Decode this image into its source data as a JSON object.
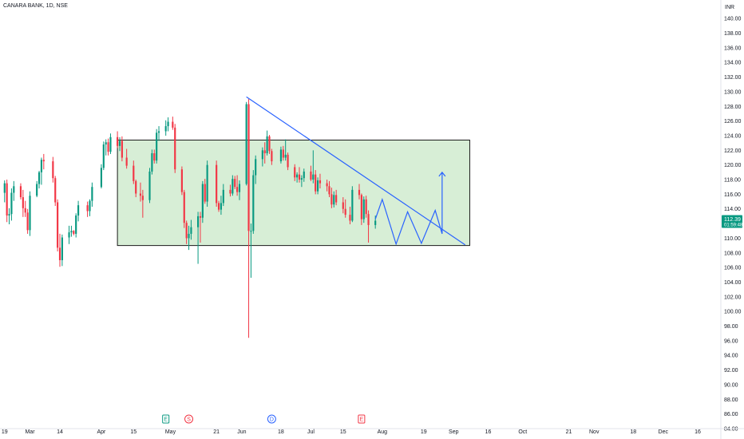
{
  "header": {
    "title": "CANARA BANK, 1D, NSE",
    "currency": "INR"
  },
  "price_tag": {
    "price": "112.39",
    "countdown": "01:59:48",
    "color": "#089981"
  },
  "colors": {
    "up": "#089981",
    "down": "#f23645",
    "box_fill": "#d7eed6",
    "box_stroke": "#1b1b1b",
    "trendline": "#2962ff",
    "projection": "#2962ff",
    "axis_border": "#e0e3eb"
  },
  "event_markers": [
    {
      "label": "E",
      "x": "Apr 29",
      "color": "#089981"
    },
    {
      "label": "S",
      "x": "May 9",
      "color": "#f23645"
    },
    {
      "label": "D",
      "x": "Jun 14",
      "color": "#2962ff"
    },
    {
      "label": "E",
      "x": "Jul 23",
      "color": "#f23645"
    }
  ],
  "chart_data": {
    "type": "candlestick",
    "title": "CANARA BANK, 1D, NSE",
    "y_unit": "INR",
    "ylim": [
      84,
      141
    ],
    "x_range": [
      "2024-02-17",
      "2024-12-25"
    ],
    "x_tick_labels": [
      "19",
      "Mar",
      "14",
      "Apr",
      "15",
      "May",
      "21",
      "Jun",
      "18",
      "Jul",
      "15",
      "Aug",
      "19",
      "Sep",
      "16",
      "Oct",
      "21",
      "Nov",
      "18",
      "Dec",
      "16"
    ],
    "y_tick_labels": [
      "84.00",
      "86.00",
      "88.00",
      "90.00",
      "92.00",
      "94.00",
      "96.00",
      "98.00",
      "100.00",
      "102.00",
      "104.00",
      "106.00",
      "108.00",
      "110.00",
      "112.00",
      "114.00",
      "116.00",
      "118.00",
      "120.00",
      "122.00",
      "124.00",
      "126.00",
      "128.00",
      "130.00",
      "132.00",
      "134.00",
      "136.00",
      "138.00",
      "140.00"
    ],
    "grid": false,
    "candles": [
      {
        "d": "2024-02-15",
        "o": 113.2,
        "h": 119.0,
        "l": 112.0,
        "c": 118.5
      },
      {
        "d": "2024-02-16",
        "o": 118.5,
        "h": 119.6,
        "l": 115.4,
        "c": 116.2
      },
      {
        "d": "2024-02-19",
        "o": 116.2,
        "h": 117.9,
        "l": 114.9,
        "c": 117.5
      },
      {
        "d": "2024-02-20",
        "o": 117.5,
        "h": 118.0,
        "l": 112.2,
        "c": 113.1
      },
      {
        "d": "2024-02-21",
        "o": 113.1,
        "h": 114.1,
        "l": 111.9,
        "c": 113.3
      },
      {
        "d": "2024-02-22",
        "o": 113.3,
        "h": 116.8,
        "l": 112.4,
        "c": 116.2
      },
      {
        "d": "2024-02-23",
        "o": 116.2,
        "h": 117.8,
        "l": 115.1,
        "c": 117.1
      },
      {
        "d": "2024-02-26",
        "o": 117.1,
        "h": 117.5,
        "l": 115.3,
        "c": 115.6
      },
      {
        "d": "2024-02-27",
        "o": 115.6,
        "h": 116.6,
        "l": 112.9,
        "c": 114.1
      },
      {
        "d": "2024-02-28",
        "o": 114.1,
        "h": 115.1,
        "l": 112.9,
        "c": 113.5
      },
      {
        "d": "2024-02-29",
        "o": 113.5,
        "h": 114.0,
        "l": 110.6,
        "c": 111.1
      },
      {
        "d": "2024-03-01",
        "o": 111.1,
        "h": 116.4,
        "l": 110.3,
        "c": 115.8
      },
      {
        "d": "2024-03-04",
        "o": 115.8,
        "h": 117.8,
        "l": 115.6,
        "c": 117.4
      },
      {
        "d": "2024-03-05",
        "o": 117.4,
        "h": 119.2,
        "l": 116.8,
        "c": 119.0
      },
      {
        "d": "2024-03-06",
        "o": 119.0,
        "h": 121.0,
        "l": 117.3,
        "c": 120.7
      },
      {
        "d": "2024-03-07",
        "o": 120.7,
        "h": 121.5,
        "l": 119.4,
        "c": 120.5
      },
      {
        "d": "2024-03-11",
        "o": 120.5,
        "h": 121.1,
        "l": 117.6,
        "c": 118.2
      },
      {
        "d": "2024-03-12",
        "o": 118.2,
        "h": 118.5,
        "l": 114.4,
        "c": 114.9
      },
      {
        "d": "2024-03-13",
        "o": 114.9,
        "h": 115.3,
        "l": 108.2,
        "c": 108.7
      },
      {
        "d": "2024-03-14",
        "o": 108.7,
        "h": 110.6,
        "l": 106.1,
        "c": 107.0
      },
      {
        "d": "2024-03-15",
        "o": 107.0,
        "h": 110.5,
        "l": 106.2,
        "c": 110.1
      },
      {
        "d": "2024-03-18",
        "o": 110.1,
        "h": 111.7,
        "l": 109.2,
        "c": 110.8
      },
      {
        "d": "2024-03-19",
        "o": 110.8,
        "h": 111.7,
        "l": 110.2,
        "c": 111.0
      },
      {
        "d": "2024-03-20",
        "o": 111.0,
        "h": 111.1,
        "l": 110.4,
        "c": 110.6
      },
      {
        "d": "2024-03-21",
        "o": 110.6,
        "h": 113.4,
        "l": 110.1,
        "c": 113.1
      },
      {
        "d": "2024-03-22",
        "o": 113.1,
        "h": 115.1,
        "l": 112.3,
        "c": 114.5
      },
      {
        "d": "2024-03-26",
        "o": 114.5,
        "h": 115.0,
        "l": 112.9,
        "c": 113.7
      },
      {
        "d": "2024-03-27",
        "o": 113.7,
        "h": 115.3,
        "l": 113.0,
        "c": 115.1
      },
      {
        "d": "2024-03-28",
        "o": 115.1,
        "h": 117.6,
        "l": 114.3,
        "c": 117.0
      },
      {
        "d": "2024-04-01",
        "o": 117.0,
        "h": 120.1,
        "l": 116.8,
        "c": 119.6
      },
      {
        "d": "2024-04-02",
        "o": 119.6,
        "h": 123.2,
        "l": 119.3,
        "c": 122.8
      },
      {
        "d": "2024-04-03",
        "o": 122.8,
        "h": 123.5,
        "l": 121.3,
        "c": 123.1
      },
      {
        "d": "2024-04-04",
        "o": 123.1,
        "h": 123.6,
        "l": 121.3,
        "c": 121.8
      },
      {
        "d": "2024-04-05",
        "o": 121.8,
        "h": 124.3,
        "l": 121.5,
        "c": 123.8
      },
      {
        "d": "2024-04-08",
        "o": 123.8,
        "h": 124.6,
        "l": 122.3,
        "c": 122.6
      },
      {
        "d": "2024-04-09",
        "o": 122.6,
        "h": 123.8,
        "l": 121.9,
        "c": 123.3
      },
      {
        "d": "2024-04-10",
        "o": 123.3,
        "h": 123.9,
        "l": 120.5,
        "c": 121.0
      },
      {
        "d": "2024-04-12",
        "o": 121.0,
        "h": 122.2,
        "l": 119.5,
        "c": 119.9
      },
      {
        "d": "2024-04-15",
        "o": 119.9,
        "h": 120.6,
        "l": 117.4,
        "c": 117.8
      },
      {
        "d": "2024-04-16",
        "o": 117.8,
        "h": 118.0,
        "l": 115.6,
        "c": 116.1
      },
      {
        "d": "2024-04-18",
        "o": 116.1,
        "h": 117.6,
        "l": 115.0,
        "c": 115.8
      },
      {
        "d": "2024-04-19",
        "o": 115.8,
        "h": 116.6,
        "l": 112.8,
        "c": 115.2
      },
      {
        "d": "2024-04-22",
        "o": 115.2,
        "h": 119.6,
        "l": 114.8,
        "c": 119.1
      },
      {
        "d": "2024-04-23",
        "o": 119.1,
        "h": 122.1,
        "l": 118.7,
        "c": 121.6
      },
      {
        "d": "2024-04-24",
        "o": 121.6,
        "h": 122.1,
        "l": 120.2,
        "c": 120.6
      },
      {
        "d": "2024-04-25",
        "o": 120.6,
        "h": 124.9,
        "l": 120.2,
        "c": 124.4
      },
      {
        "d": "2024-04-26",
        "o": 124.4,
        "h": 125.3,
        "l": 123.3,
        "c": 124.6
      },
      {
        "d": "2024-04-29",
        "o": 124.6,
        "h": 126.1,
        "l": 124.0,
        "c": 125.3
      },
      {
        "d": "2024-04-30",
        "o": 125.3,
        "h": 126.5,
        "l": 124.6,
        "c": 125.9
      },
      {
        "d": "2024-05-02",
        "o": 125.9,
        "h": 126.6,
        "l": 124.8,
        "c": 125.1
      },
      {
        "d": "2024-05-03",
        "o": 125.1,
        "h": 125.6,
        "l": 118.9,
        "c": 119.4
      },
      {
        "d": "2024-05-06",
        "o": 119.4,
        "h": 119.8,
        "l": 115.9,
        "c": 116.3
      },
      {
        "d": "2024-05-07",
        "o": 116.3,
        "h": 116.6,
        "l": 111.4,
        "c": 112.1
      },
      {
        "d": "2024-05-08",
        "o": 112.1,
        "h": 112.4,
        "l": 109.2,
        "c": 110.0
      },
      {
        "d": "2024-05-09",
        "o": 110.0,
        "h": 111.7,
        "l": 108.4,
        "c": 110.6
      },
      {
        "d": "2024-05-10",
        "o": 110.6,
        "h": 112.5,
        "l": 109.8,
        "c": 111.5
      },
      {
        "d": "2024-05-13",
        "o": 111.5,
        "h": 113.6,
        "l": 106.5,
        "c": 113.0
      },
      {
        "d": "2024-05-14",
        "o": 113.0,
        "h": 113.6,
        "l": 109.4,
        "c": 112.8
      },
      {
        "d": "2024-05-15",
        "o": 112.8,
        "h": 117.8,
        "l": 112.1,
        "c": 117.4
      },
      {
        "d": "2024-05-16",
        "o": 117.4,
        "h": 118.1,
        "l": 114.7,
        "c": 115.0
      },
      {
        "d": "2024-05-17",
        "o": 115.0,
        "h": 120.6,
        "l": 114.3,
        "c": 120.0
      },
      {
        "d": "2024-05-21",
        "o": 120.0,
        "h": 120.6,
        "l": 114.3,
        "c": 114.8
      },
      {
        "d": "2024-05-22",
        "o": 114.8,
        "h": 115.1,
        "l": 113.6,
        "c": 113.9
      },
      {
        "d": "2024-05-23",
        "o": 113.9,
        "h": 115.8,
        "l": 113.2,
        "c": 114.8
      },
      {
        "d": "2024-05-24",
        "o": 114.8,
        "h": 117.4,
        "l": 114.4,
        "c": 116.6
      },
      {
        "d": "2024-05-27",
        "o": 116.6,
        "h": 117.3,
        "l": 115.7,
        "c": 116.1
      },
      {
        "d": "2024-05-28",
        "o": 116.1,
        "h": 118.6,
        "l": 115.8,
        "c": 118.1
      },
      {
        "d": "2024-05-29",
        "o": 118.1,
        "h": 118.5,
        "l": 116.7,
        "c": 117.0
      },
      {
        "d": "2024-05-30",
        "o": 117.0,
        "h": 118.6,
        "l": 115.8,
        "c": 116.3
      },
      {
        "d": "2024-05-31",
        "o": 116.3,
        "h": 117.9,
        "l": 115.2,
        "c": 117.4
      },
      {
        "d": "2024-06-03",
        "o": 117.4,
        "h": 128.6,
        "l": 117.2,
        "c": 128.3
      },
      {
        "d": "2024-06-04",
        "o": 128.3,
        "h": 129.0,
        "l": 96.4,
        "c": 111.0
      },
      {
        "d": "2024-06-05",
        "o": 111.0,
        "h": 112.0,
        "l": 104.6,
        "c": 111.0
      },
      {
        "d": "2024-06-06",
        "o": 111.0,
        "h": 119.3,
        "l": 110.6,
        "c": 118.6
      },
      {
        "d": "2024-06-07",
        "o": 118.6,
        "h": 121.3,
        "l": 117.4,
        "c": 120.8
      },
      {
        "d": "2024-06-10",
        "o": 120.8,
        "h": 122.4,
        "l": 119.8,
        "c": 122.0
      },
      {
        "d": "2024-06-11",
        "o": 122.0,
        "h": 123.1,
        "l": 120.2,
        "c": 121.6
      },
      {
        "d": "2024-06-12",
        "o": 121.6,
        "h": 124.7,
        "l": 121.3,
        "c": 123.9
      },
      {
        "d": "2024-06-13",
        "o": 123.9,
        "h": 124.1,
        "l": 121.5,
        "c": 121.9
      },
      {
        "d": "2024-06-14",
        "o": 121.9,
        "h": 122.2,
        "l": 120.0,
        "c": 120.5
      },
      {
        "d": "2024-06-18",
        "o": 120.5,
        "h": 122.5,
        "l": 120.2,
        "c": 122.1
      },
      {
        "d": "2024-06-19",
        "o": 122.1,
        "h": 122.6,
        "l": 120.6,
        "c": 121.0
      },
      {
        "d": "2024-06-20",
        "o": 121.0,
        "h": 123.5,
        "l": 120.6,
        "c": 121.4
      },
      {
        "d": "2024-06-21",
        "o": 121.4,
        "h": 121.7,
        "l": 119.3,
        "c": 119.7
      },
      {
        "d": "2024-06-24",
        "o": 119.7,
        "h": 120.1,
        "l": 117.8,
        "c": 118.3
      },
      {
        "d": "2024-06-25",
        "o": 118.3,
        "h": 119.0,
        "l": 117.6,
        "c": 118.7
      },
      {
        "d": "2024-06-26",
        "o": 118.7,
        "h": 119.7,
        "l": 117.6,
        "c": 118.0
      },
      {
        "d": "2024-06-27",
        "o": 118.0,
        "h": 118.6,
        "l": 117.0,
        "c": 118.2
      },
      {
        "d": "2024-06-28",
        "o": 118.2,
        "h": 119.5,
        "l": 117.7,
        "c": 119.1
      },
      {
        "d": "2024-07-01",
        "o": 119.1,
        "h": 119.9,
        "l": 117.8,
        "c": 118.0
      },
      {
        "d": "2024-07-02",
        "o": 118.0,
        "h": 122.0,
        "l": 117.5,
        "c": 118.7
      },
      {
        "d": "2024-07-03",
        "o": 118.7,
        "h": 119.3,
        "l": 116.0,
        "c": 116.4
      },
      {
        "d": "2024-07-04",
        "o": 116.4,
        "h": 118.3,
        "l": 116.0,
        "c": 117.9
      },
      {
        "d": "2024-07-05",
        "o": 117.9,
        "h": 118.8,
        "l": 116.8,
        "c": 117.5
      },
      {
        "d": "2024-07-08",
        "o": 117.5,
        "h": 118.0,
        "l": 116.4,
        "c": 117.1
      },
      {
        "d": "2024-07-09",
        "o": 117.1,
        "h": 117.8,
        "l": 115.6,
        "c": 116.0
      },
      {
        "d": "2024-07-10",
        "o": 116.0,
        "h": 116.9,
        "l": 114.1,
        "c": 114.6
      },
      {
        "d": "2024-07-11",
        "o": 114.6,
        "h": 116.4,
        "l": 114.2,
        "c": 115.9
      },
      {
        "d": "2024-07-12",
        "o": 115.9,
        "h": 116.6,
        "l": 114.5,
        "c": 114.9
      },
      {
        "d": "2024-07-15",
        "o": 114.9,
        "h": 115.6,
        "l": 113.4,
        "c": 114.0
      },
      {
        "d": "2024-07-16",
        "o": 114.0,
        "h": 115.3,
        "l": 112.8,
        "c": 113.2
      },
      {
        "d": "2024-07-18",
        "o": 113.2,
        "h": 114.3,
        "l": 111.9,
        "c": 112.4
      },
      {
        "d": "2024-07-19",
        "o": 112.4,
        "h": 117.1,
        "l": 112.2,
        "c": 116.6
      },
      {
        "d": "2024-07-22",
        "o": 116.6,
        "h": 117.4,
        "l": 115.3,
        "c": 115.9
      },
      {
        "d": "2024-07-23",
        "o": 115.9,
        "h": 116.1,
        "l": 111.8,
        "c": 112.6
      },
      {
        "d": "2024-07-24",
        "o": 112.6,
        "h": 115.7,
        "l": 112.1,
        "c": 115.3
      },
      {
        "d": "2024-07-25",
        "o": 115.3,
        "h": 115.8,
        "l": 112.8,
        "c": 113.3
      },
      {
        "d": "2024-07-26",
        "o": 113.3,
        "h": 113.8,
        "l": 109.4,
        "c": 111.8
      },
      {
        "d": "2024-07-29",
        "o": 111.8,
        "h": 113.1,
        "l": 111.3,
        "c": 112.39
      }
    ]
  },
  "drawings": {
    "range_box": {
      "x1": "2024-04-08",
      "x2": "2024-09-08",
      "y_top": 123.4,
      "y_bottom": 109.0
    },
    "trendline": {
      "x1": "2024-06-03",
      "y1": 129.3,
      "x2": "2024-09-06",
      "y2": 109.1
    },
    "projection_path": [
      {
        "x": "2024-07-29",
        "y": 112.6
      },
      {
        "x": "2024-08-01",
        "y": 115.3
      },
      {
        "x": "2024-08-07",
        "y": 109.2
      },
      {
        "x": "2024-08-12",
        "y": 113.6
      },
      {
        "x": "2024-08-18",
        "y": 109.3
      },
      {
        "x": "2024-08-24",
        "y": 113.8
      },
      {
        "x": "2024-08-27",
        "y": 110.6
      },
      {
        "x": "2024-08-27",
        "y": 119.0
      }
    ]
  }
}
